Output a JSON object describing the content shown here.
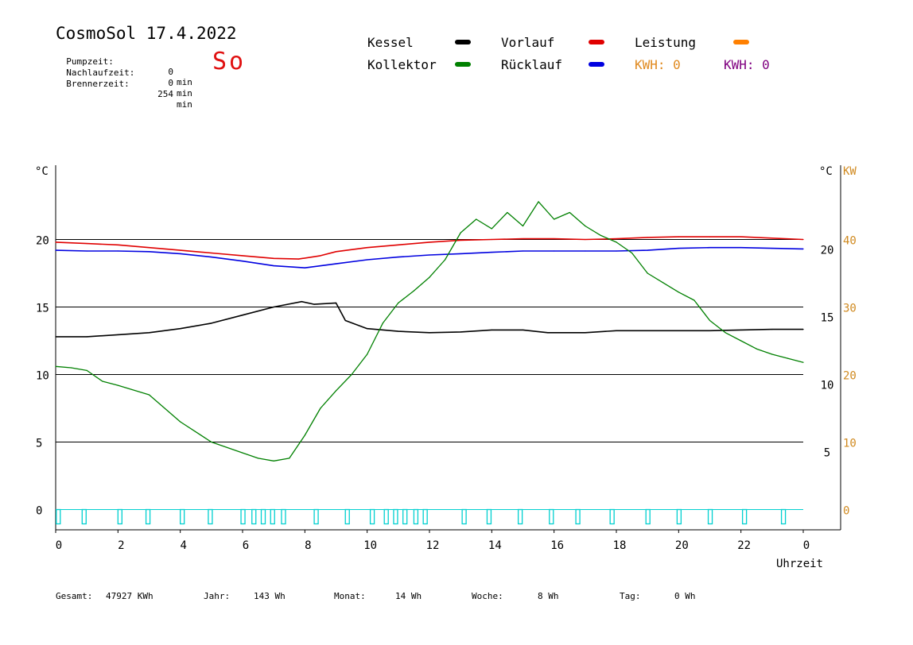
{
  "header": {
    "title": "CosmoSol 17.4.2022",
    "day": "So",
    "info": [
      {
        "label": "Pumpzeit:",
        "value": "0",
        "unit": "min"
      },
      {
        "label": "Nachlaufzeit:",
        "value": "0",
        "unit": "min"
      },
      {
        "label": "Brennerzeit:",
        "value": "254",
        "unit": "min"
      }
    ]
  },
  "legend": {
    "kessel": {
      "label": "Kessel",
      "color": "#000000"
    },
    "kollektor": {
      "label": "Kollektor",
      "color": "#008000"
    },
    "vorlauf": {
      "label": "Vorlauf",
      "color": "#e00000"
    },
    "ruecklauf": {
      "label": "Rücklauf",
      "color": "#0000e0"
    },
    "leistung": {
      "label": "Leistung",
      "color": "#ff8000"
    },
    "kwh1": {
      "label": "KWH: 0",
      "color": "#e08a20"
    },
    "kwh2": {
      "label": "KWH: 0",
      "color": "#800080"
    }
  },
  "footer": {
    "gesamt_label": "Gesamt:",
    "gesamt_value": "47927 KWh",
    "jahr_label": "Jahr:",
    "jahr_value": "143 Wh",
    "monat_label": "Monat:",
    "monat_value": "14 Wh",
    "woche_label": "Woche:",
    "woche_value": "8 Wh",
    "tag_label": "Tag:",
    "tag_value": "0 Wh"
  },
  "chart_data": {
    "type": "line",
    "xlabel": "Uhrzeit",
    "x_range": [
      0,
      24
    ],
    "x_ticks": [
      "0",
      "2",
      "4",
      "6",
      "8",
      "10",
      "12",
      "14",
      "16",
      "18",
      "20",
      "22",
      "0"
    ],
    "y_left_unit": "°C",
    "y_left_ticks": [
      "0",
      "5",
      "10",
      "15",
      "20"
    ],
    "y_right_unit": "°C",
    "y_right_ticks": [
      "5",
      "10",
      "15",
      "20"
    ],
    "y_power_unit": "KW",
    "y_power_ticks": [
      "0",
      "10",
      "20",
      "30",
      "40"
    ],
    "ylim": [
      -1.5,
      25.5
    ],
    "grid": "horizontal",
    "series": [
      {
        "name": "Vorlauf",
        "color": "#e00000",
        "points": [
          [
            0,
            19.8
          ],
          [
            1,
            19.7
          ],
          [
            2,
            19.6
          ],
          [
            3,
            19.4
          ],
          [
            4,
            19.2
          ],
          [
            5,
            19.0
          ],
          [
            6,
            18.8
          ],
          [
            7,
            18.6
          ],
          [
            7.8,
            18.55
          ],
          [
            8.5,
            18.8
          ],
          [
            9,
            19.1
          ],
          [
            10,
            19.4
          ],
          [
            11,
            19.6
          ],
          [
            12,
            19.8
          ],
          [
            13,
            19.95
          ],
          [
            14,
            20.0
          ],
          [
            15,
            20.05
          ],
          [
            16,
            20.05
          ],
          [
            17,
            20.0
          ],
          [
            18,
            20.05
          ],
          [
            19,
            20.15
          ],
          [
            20,
            20.2
          ],
          [
            21,
            20.2
          ],
          [
            22,
            20.2
          ],
          [
            23,
            20.1
          ],
          [
            24,
            20.0
          ]
        ]
      },
      {
        "name": "Rücklauf",
        "color": "#0000e0",
        "points": [
          [
            0,
            19.2
          ],
          [
            1,
            19.15
          ],
          [
            2,
            19.15
          ],
          [
            3,
            19.1
          ],
          [
            4,
            18.95
          ],
          [
            5,
            18.7
          ],
          [
            6,
            18.4
          ],
          [
            7,
            18.05
          ],
          [
            8,
            17.9
          ],
          [
            9,
            18.2
          ],
          [
            10,
            18.5
          ],
          [
            11,
            18.7
          ],
          [
            12,
            18.85
          ],
          [
            13,
            18.95
          ],
          [
            14,
            19.05
          ],
          [
            15,
            19.15
          ],
          [
            16,
            19.15
          ],
          [
            17,
            19.15
          ],
          [
            18,
            19.15
          ],
          [
            19,
            19.2
          ],
          [
            20,
            19.35
          ],
          [
            21,
            19.4
          ],
          [
            22,
            19.4
          ],
          [
            23,
            19.35
          ],
          [
            24,
            19.3
          ]
        ]
      },
      {
        "name": "Kessel",
        "color": "#000000",
        "points": [
          [
            0,
            12.8
          ],
          [
            1,
            12.8
          ],
          [
            2,
            12.95
          ],
          [
            3,
            13.1
          ],
          [
            4,
            13.4
          ],
          [
            5,
            13.8
          ],
          [
            6,
            14.4
          ],
          [
            7,
            15.0
          ],
          [
            7.9,
            15.4
          ],
          [
            8.3,
            15.2
          ],
          [
            9,
            15.3
          ],
          [
            9.3,
            14.0
          ],
          [
            10,
            13.4
          ],
          [
            11,
            13.2
          ],
          [
            12,
            13.1
          ],
          [
            13,
            13.15
          ],
          [
            14,
            13.3
          ],
          [
            15,
            13.3
          ],
          [
            15.8,
            13.1
          ],
          [
            17,
            13.1
          ],
          [
            18,
            13.25
          ],
          [
            19,
            13.25
          ],
          [
            20,
            13.25
          ],
          [
            21,
            13.25
          ],
          [
            22,
            13.3
          ],
          [
            23,
            13.35
          ],
          [
            24,
            13.35
          ]
        ]
      },
      {
        "name": "Kollektor",
        "color": "#008000",
        "points": [
          [
            0,
            10.6
          ],
          [
            0.5,
            10.5
          ],
          [
            1,
            10.3
          ],
          [
            1.5,
            9.5
          ],
          [
            2,
            9.2
          ],
          [
            3,
            8.5
          ],
          [
            4,
            6.5
          ],
          [
            5,
            5.0
          ],
          [
            6,
            4.2
          ],
          [
            6.5,
            3.8
          ],
          [
            7,
            3.6
          ],
          [
            7.5,
            3.8
          ],
          [
            8,
            5.5
          ],
          [
            8.5,
            7.5
          ],
          [
            9,
            8.8
          ],
          [
            9.5,
            10.0
          ],
          [
            10,
            11.5
          ],
          [
            10.5,
            13.8
          ],
          [
            11,
            15.3
          ],
          [
            11.5,
            16.2
          ],
          [
            12,
            17.2
          ],
          [
            12.5,
            18.5
          ],
          [
            13,
            20.5
          ],
          [
            13.5,
            21.5
          ],
          [
            14,
            20.8
          ],
          [
            14.5,
            22.0
          ],
          [
            15,
            21.0
          ],
          [
            15.5,
            22.8
          ],
          [
            16,
            21.5
          ],
          [
            16.5,
            22.0
          ],
          [
            17,
            21.0
          ],
          [
            17.5,
            20.3
          ],
          [
            18,
            19.8
          ],
          [
            18.5,
            19.0
          ],
          [
            19,
            17.5
          ],
          [
            19.5,
            16.8
          ],
          [
            20,
            16.1
          ],
          [
            20.5,
            15.5
          ],
          [
            21,
            14.0
          ],
          [
            21.5,
            13.1
          ],
          [
            22,
            12.5
          ],
          [
            22.5,
            11.9
          ],
          [
            23,
            11.5
          ],
          [
            23.5,
            11.2
          ],
          [
            24,
            10.9
          ]
        ]
      },
      {
        "name": "Leistung",
        "color": "#ff8000",
        "points": [
          [
            0,
            0
          ],
          [
            24,
            0
          ]
        ]
      }
    ],
    "pump_pulses_hours": [
      0.02,
      0.85,
      2.0,
      2.9,
      4.0,
      4.9,
      5.95,
      6.3,
      6.6,
      6.9,
      7.25,
      8.3,
      9.3,
      10.1,
      10.55,
      10.85,
      11.15,
      11.5,
      11.8,
      13.05,
      13.85,
      14.85,
      15.85,
      16.7,
      17.8,
      18.95,
      19.95,
      20.95,
      22.05,
      23.3
    ]
  }
}
